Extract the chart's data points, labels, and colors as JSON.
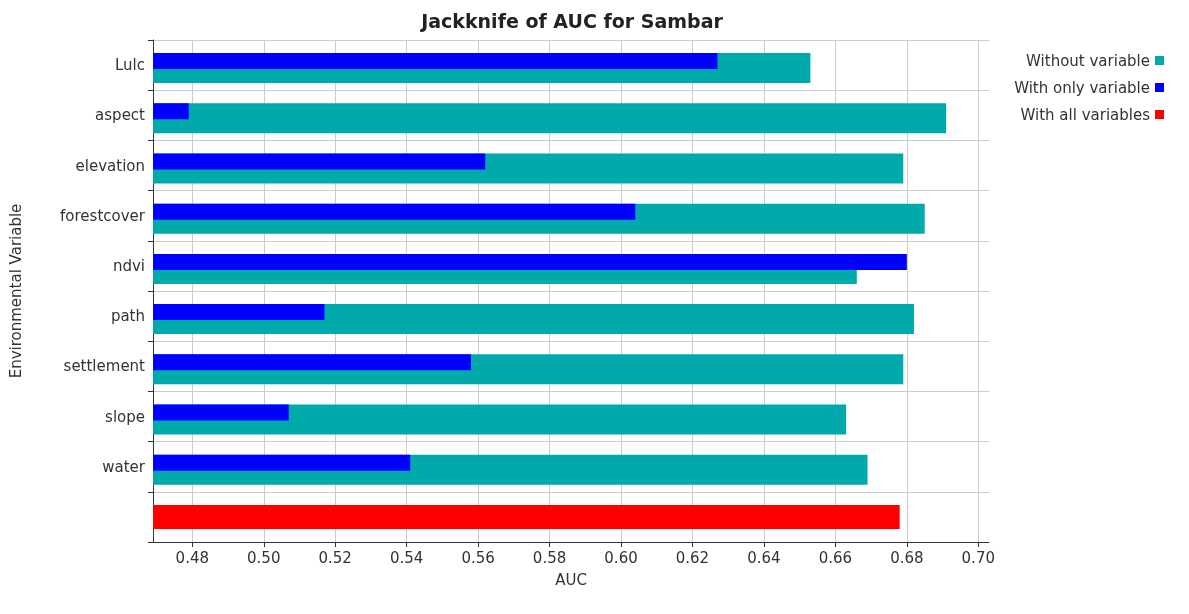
{
  "chart_data": {
    "type": "bar",
    "orientation": "horizontal",
    "title": "Jackknife of AUC for Sambar",
    "xlabel": "AUC",
    "ylabel": "Environmental Variable",
    "categories": [
      "Lulc",
      "aspect",
      "elevation",
      "forestcover",
      "ndvi",
      "path",
      "settlement",
      "slope",
      "water",
      null
    ],
    "series": [
      {
        "name": "Without variable",
        "color": "#00aaaa",
        "values": [
          0.653,
          0.691,
          0.679,
          0.685,
          0.666,
          0.682,
          0.679,
          0.663,
          0.669,
          null
        ]
      },
      {
        "name": "With only variable",
        "color": "#0000ff",
        "values": [
          0.627,
          0.479,
          0.562,
          0.604,
          0.68,
          0.517,
          0.558,
          0.507,
          0.541,
          null
        ]
      },
      {
        "name": "With all variables",
        "color": "#ff0000",
        "values": [
          null,
          null,
          null,
          null,
          null,
          null,
          null,
          null,
          null,
          0.678
        ]
      }
    ],
    "xlim": [
      0.469,
      0.703
    ],
    "xticks": [
      0.48,
      {
        "value": 0.5,
        "label": "0.50"
      },
      0.52,
      0.54,
      0.56,
      0.58,
      {
        "value": 0.6,
        "label": "0.60"
      },
      0.62,
      0.64,
      0.66,
      0.68,
      {
        "value": 0.7,
        "label": "0.70"
      }
    ],
    "grid": true,
    "legend": "top right"
  }
}
